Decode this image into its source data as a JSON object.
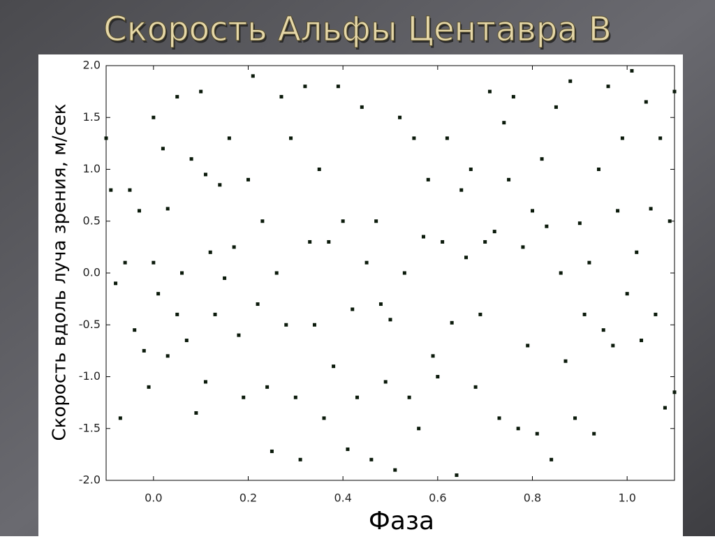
{
  "chart_data": {
    "type": "scatter",
    "title": "Скорость Альфы Центавра B",
    "x_label": "Фаза",
    "y_label": "Скорость вдоль луча зрения, м/сек",
    "color": "#0b1a0b",
    "xlim": [
      -0.1,
      1.1
    ],
    "ylim": [
      -2.0,
      2.0
    ],
    "xticks": [
      {
        "value": 0,
        "label": "0.0"
      },
      0.2,
      0.4,
      0.6,
      0.8,
      {
        "value": 1,
        "label": "1.0"
      }
    ],
    "yticks": [
      {
        "value": 2,
        "label": "2.0"
      },
      1.5,
      {
        "value": 1,
        "label": "1.0"
      },
      0.5,
      {
        "value": 0,
        "label": "0.0"
      },
      -0.5,
      {
        "value": -1,
        "label": "-1.0"
      },
      -1.5,
      {
        "value": -2,
        "label": "-2.0"
      }
    ],
    "x": [
      -0.1,
      -0.09,
      -0.08,
      -0.07,
      -0.06,
      -0.05,
      -0.04,
      -0.03,
      -0.02,
      -0.01,
      0.0,
      0.0,
      0.01,
      0.02,
      0.03,
      0.03,
      0.05,
      0.05,
      0.06,
      0.07,
      0.08,
      0.09,
      0.1,
      0.11,
      0.11,
      0.12,
      0.13,
      0.14,
      0.15,
      0.16,
      0.17,
      0.18,
      0.19,
      0.2,
      0.21,
      0.22,
      0.23,
      0.24,
      0.25,
      0.26,
      0.27,
      0.28,
      0.29,
      0.3,
      0.31,
      0.32,
      0.33,
      0.34,
      0.35,
      0.36,
      0.37,
      0.38,
      0.39,
      0.4,
      0.41,
      0.42,
      0.43,
      0.44,
      0.45,
      0.46,
      0.47,
      0.48,
      0.49,
      0.5,
      0.51,
      0.52,
      0.53,
      0.54,
      0.55,
      0.56,
      0.57,
      0.58,
      0.59,
      0.6,
      0.61,
      0.62,
      0.63,
      0.64,
      0.65,
      0.66,
      0.67,
      0.68,
      0.69,
      0.7,
      0.71,
      0.72,
      0.73,
      0.74,
      0.75,
      0.76,
      0.77,
      0.78,
      0.79,
      0.8,
      0.81,
      0.82,
      0.83,
      0.84,
      0.85,
      0.86,
      0.87,
      0.88,
      0.89,
      0.9,
      0.91,
      0.92,
      0.93,
      0.94,
      0.95,
      0.96,
      0.97,
      0.98,
      0.99,
      1.0,
      1.01,
      1.02,
      1.03,
      1.04,
      1.05,
      1.06,
      1.07,
      1.08,
      1.09,
      1.1,
      1.1
    ],
    "values": [
      1.3,
      0.8,
      -0.1,
      -1.4,
      0.1,
      0.8,
      -0.55,
      0.6,
      -0.75,
      -1.1,
      1.5,
      0.1,
      -0.2,
      1.2,
      0.62,
      -0.8,
      1.7,
      -0.4,
      0.0,
      -0.65,
      1.1,
      -1.35,
      1.75,
      -1.05,
      0.95,
      0.2,
      -0.4,
      0.85,
      -0.05,
      1.3,
      0.25,
      -0.6,
      -1.2,
      0.9,
      1.9,
      -0.3,
      0.5,
      -1.1,
      -1.72,
      0.0,
      1.7,
      -0.5,
      1.3,
      -1.2,
      -1.8,
      1.8,
      0.3,
      -0.5,
      1.0,
      -1.4,
      0.3,
      -0.9,
      1.8,
      0.5,
      -1.7,
      -0.35,
      -1.2,
      1.6,
      0.1,
      -1.8,
      0.5,
      -0.3,
      -1.05,
      -0.45,
      -1.9,
      1.5,
      0.0,
      -1.2,
      1.3,
      -1.5,
      0.35,
      0.9,
      -0.8,
      -1.0,
      0.3,
      1.3,
      -0.48,
      -1.95,
      0.8,
      0.15,
      1.0,
      -1.1,
      -0.4,
      0.3,
      1.75,
      0.4,
      -1.4,
      1.45,
      0.9,
      1.7,
      -1.5,
      0.25,
      -0.7,
      0.6,
      -1.55,
      1.1,
      0.45,
      -1.8,
      1.6,
      0.0,
      -0.85,
      1.85,
      -1.4,
      0.48,
      -0.4,
      0.1,
      -1.55,
      1.0,
      -0.55,
      1.8,
      -0.7,
      0.6,
      1.3,
      -0.2,
      1.95,
      0.2,
      -0.65,
      1.65,
      0.62,
      -0.4,
      1.3,
      -1.3,
      0.5,
      1.75,
      -1.15
    ]
  }
}
